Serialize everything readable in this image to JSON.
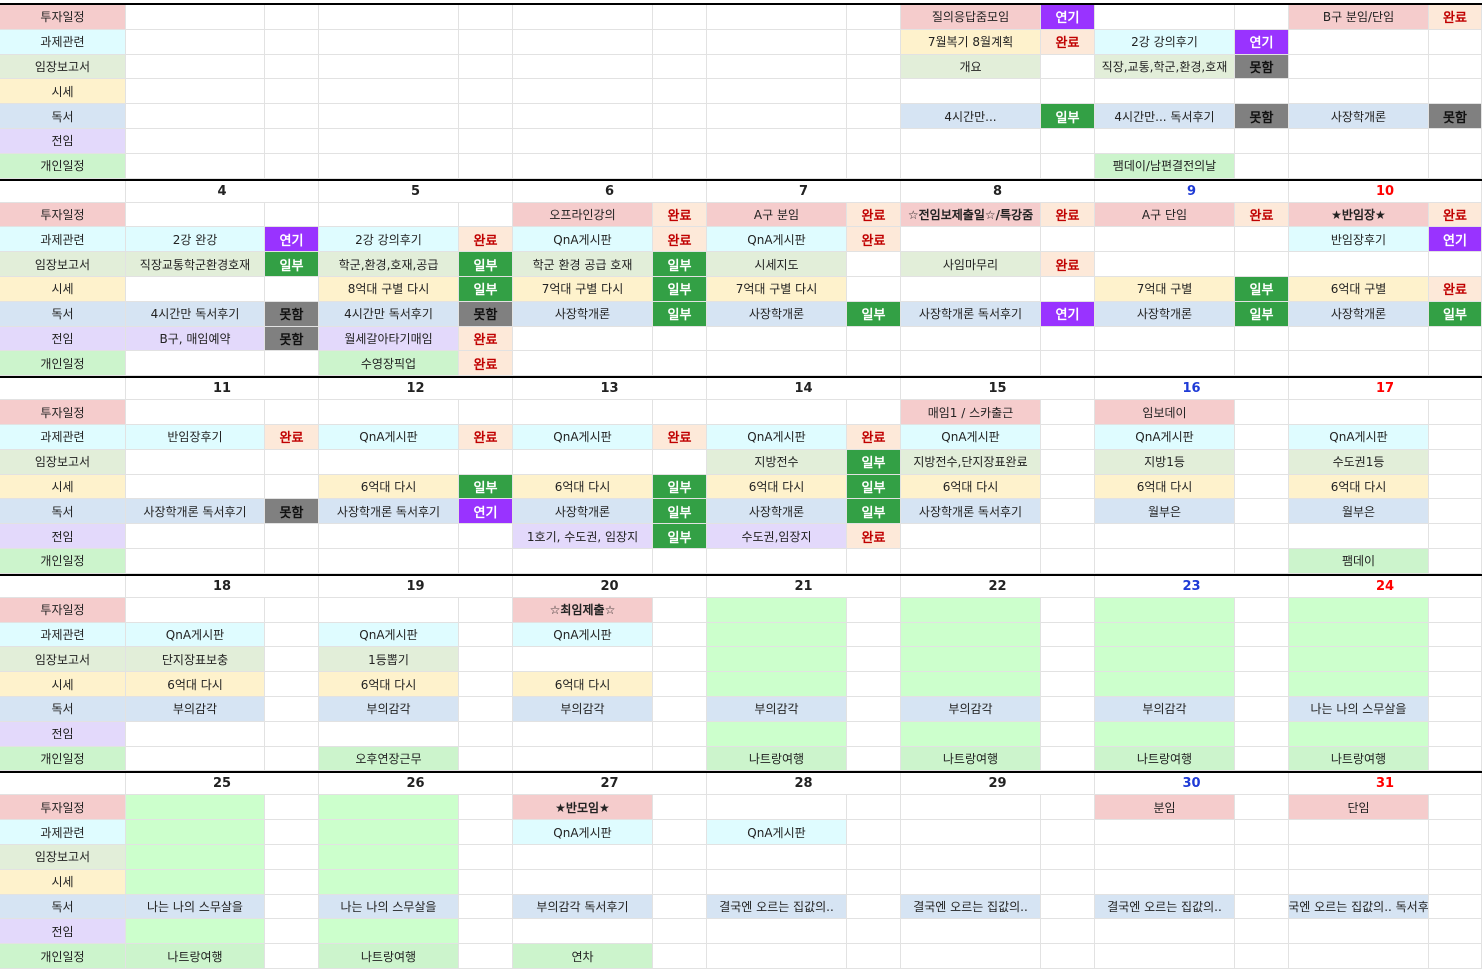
{
  "colors": {
    "label_bg": [
      "#f5cccc",
      "#dffcff",
      "#e2eed9",
      "#fef2cc",
      "#d6e4f3",
      "#e3d9fb",
      "#ccf4cc"
    ],
    "done": "#fde9d9",
    "done_text": "#c00000",
    "postpone": "#9933ff",
    "partial": "#33a045",
    "fail": "#808080",
    "pink": "#f5cccc",
    "mint": "#dffcff",
    "sage": "#e2eed9",
    "cream": "#fef2cc",
    "sky": "#d6e4f3",
    "lavender": "#e3d9fb",
    "green": "#ccf4cc",
    "bright": "#ccffcc",
    "blue_date": "#1f3bd6",
    "red_date": "#ff0000"
  },
  "labels": [
    "투자일정",
    "과제관련",
    "임장보고서",
    "시세",
    "독서",
    "전임",
    "개인일정"
  ],
  "weeks": [
    {
      "dates": [],
      "cells": [
        [
          [
            9,
            "질의응답줌모임",
            "pink"
          ],
          [
            10,
            "연기",
            "postpone"
          ],
          [
            13,
            "B구 분임/단임",
            "pink"
          ],
          [
            14,
            "완료",
            "done"
          ]
        ],
        [
          [
            9,
            "7월복기 8월계획",
            "cream"
          ],
          [
            10,
            "완료",
            "done"
          ],
          [
            11,
            "2강 강의후기",
            "mint"
          ],
          [
            12,
            "연기",
            "postpone"
          ]
        ],
        [
          [
            9,
            "개요",
            "sage"
          ],
          [
            11,
            "직장,교통,학군,환경,호재",
            "sage"
          ],
          [
            12,
            "못함",
            "fail"
          ]
        ],
        [],
        [
          [
            9,
            "4시간만...",
            "sky"
          ],
          [
            10,
            "일부",
            "partial"
          ],
          [
            11,
            "4시간만... 독서후기",
            "sky"
          ],
          [
            12,
            "못함",
            "fail"
          ],
          [
            13,
            "사장학개론",
            "sky"
          ],
          [
            14,
            "못함",
            "fail"
          ]
        ],
        [],
        [
          [
            11,
            "팸데이/남편결전의날",
            "green"
          ]
        ]
      ]
    },
    {
      "dates": [
        "4",
        "5",
        "6",
        "7",
        "8",
        "9",
        "10"
      ],
      "cells": [
        [
          [
            5,
            "오프라인강의",
            "pink"
          ],
          [
            6,
            "완료",
            "done"
          ],
          [
            7,
            "A구 분임",
            "pink"
          ],
          [
            8,
            "완료",
            "done"
          ],
          [
            9,
            "☆전임보제출일☆/특강줌",
            "pink"
          ],
          [
            10,
            "완료",
            "done"
          ],
          [
            11,
            "A구 단임",
            "pink"
          ],
          [
            12,
            "완료",
            "done"
          ],
          [
            13,
            "★반임장★",
            "pink"
          ],
          [
            14,
            "완료",
            "done"
          ]
        ],
        [
          [
            1,
            "2강 완강",
            "mint"
          ],
          [
            2,
            "연기",
            "postpone"
          ],
          [
            3,
            "2강 강의후기",
            "mint"
          ],
          [
            4,
            "완료",
            "done"
          ],
          [
            5,
            "QnA게시판",
            "mint"
          ],
          [
            6,
            "완료",
            "done"
          ],
          [
            7,
            "QnA게시판",
            "mint"
          ],
          [
            8,
            "완료",
            "done"
          ],
          [
            13,
            "반임장후기",
            "mint"
          ],
          [
            14,
            "연기",
            "postpone"
          ]
        ],
        [
          [
            1,
            "직장교통학군환경호재",
            "sage"
          ],
          [
            2,
            "일부",
            "partial"
          ],
          [
            3,
            "학군,환경,호재,공급",
            "sage"
          ],
          [
            4,
            "일부",
            "partial"
          ],
          [
            5,
            "학군 환경 공급 호재",
            "sage"
          ],
          [
            6,
            "일부",
            "partial"
          ],
          [
            7,
            "시세지도",
            "sage"
          ],
          [
            9,
            "사임마무리",
            "sage"
          ],
          [
            10,
            "완료",
            "done"
          ]
        ],
        [
          [
            3,
            "8억대 구별 다시",
            "cream"
          ],
          [
            4,
            "일부",
            "partial"
          ],
          [
            5,
            "7억대 구별 다시",
            "cream"
          ],
          [
            6,
            "일부",
            "partial"
          ],
          [
            7,
            "7억대 구별 다시",
            "cream"
          ],
          [
            11,
            "7억대 구별",
            "cream"
          ],
          [
            12,
            "일부",
            "partial"
          ],
          [
            13,
            "6억대 구별",
            "cream"
          ],
          [
            14,
            "완료",
            "done"
          ]
        ],
        [
          [
            1,
            "4시간만 독서후기",
            "sky"
          ],
          [
            2,
            "못함",
            "fail"
          ],
          [
            3,
            "4시간만 독서후기",
            "sky"
          ],
          [
            4,
            "못함",
            "fail"
          ],
          [
            5,
            "사장학개론",
            "sky"
          ],
          [
            6,
            "일부",
            "partial"
          ],
          [
            7,
            "사장학개론",
            "sky"
          ],
          [
            8,
            "일부",
            "partial"
          ],
          [
            9,
            "사장학개론 독서후기",
            "sky"
          ],
          [
            10,
            "연기",
            "postpone"
          ],
          [
            11,
            "사장학개론",
            "sky"
          ],
          [
            12,
            "일부",
            "partial"
          ],
          [
            13,
            "사장학개론",
            "sky"
          ],
          [
            14,
            "일부",
            "partial"
          ]
        ],
        [
          [
            1,
            "B구, 매임예약",
            "lavender"
          ],
          [
            2,
            "못함",
            "fail"
          ],
          [
            3,
            "월세갈아타기매임",
            "lavender"
          ],
          [
            4,
            "완료",
            "done"
          ]
        ],
        [
          [
            3,
            "수영장픽업",
            "green"
          ],
          [
            4,
            "완료",
            "done"
          ]
        ]
      ]
    },
    {
      "dates": [
        "11",
        "12",
        "13",
        "14",
        "15",
        "16",
        "17"
      ],
      "cells": [
        [
          [
            9,
            "매임1 / 스카출근",
            "pink"
          ],
          [
            11,
            "임보데이",
            "pink"
          ]
        ],
        [
          [
            1,
            "반임장후기",
            "mint"
          ],
          [
            2,
            "완료",
            "done"
          ],
          [
            3,
            "QnA게시판",
            "mint"
          ],
          [
            4,
            "완료",
            "done"
          ],
          [
            5,
            "QnA게시판",
            "mint"
          ],
          [
            6,
            "완료",
            "done"
          ],
          [
            7,
            "QnA게시판",
            "mint"
          ],
          [
            8,
            "완료",
            "done"
          ],
          [
            9,
            "QnA게시판",
            "mint"
          ],
          [
            11,
            "QnA게시판",
            "mint"
          ],
          [
            13,
            "QnA게시판",
            "mint"
          ]
        ],
        [
          [
            7,
            "지방전수",
            "sage"
          ],
          [
            8,
            "일부",
            "partial"
          ],
          [
            9,
            "지방전수,단지장표완료",
            "sage"
          ],
          [
            11,
            "지방1등",
            "sage"
          ],
          [
            13,
            "수도권1등",
            "sage"
          ]
        ],
        [
          [
            3,
            "6억대 다시",
            "cream"
          ],
          [
            4,
            "일부",
            "partial"
          ],
          [
            5,
            "6억대 다시",
            "cream"
          ],
          [
            6,
            "일부",
            "partial"
          ],
          [
            7,
            "6억대 다시",
            "cream"
          ],
          [
            8,
            "일부",
            "partial"
          ],
          [
            9,
            "6억대 다시",
            "cream"
          ],
          [
            11,
            "6억대 다시",
            "cream"
          ],
          [
            13,
            "6억대 다시",
            "cream"
          ]
        ],
        [
          [
            1,
            "사장학개론 독서후기",
            "sky"
          ],
          [
            2,
            "못함",
            "fail"
          ],
          [
            3,
            "사장학개론 독서후기",
            "sky"
          ],
          [
            4,
            "연기",
            "postpone"
          ],
          [
            5,
            "사장학개론",
            "sky"
          ],
          [
            6,
            "일부",
            "partial"
          ],
          [
            7,
            "사장학개론",
            "sky"
          ],
          [
            8,
            "일부",
            "partial"
          ],
          [
            9,
            "사장학개론 독서후기",
            "sky"
          ],
          [
            11,
            "월부은",
            "sky"
          ],
          [
            13,
            "월부은",
            "sky"
          ]
        ],
        [
          [
            5,
            "1호기, 수도권, 임장지",
            "lavender"
          ],
          [
            6,
            "일부",
            "partial"
          ],
          [
            7,
            "수도권,임장지",
            "lavender"
          ],
          [
            8,
            "완료",
            "done"
          ]
        ],
        [
          [
            13,
            "팸데이",
            "green"
          ]
        ]
      ]
    },
    {
      "dates": [
        "18",
        "19",
        "20",
        "21",
        "22",
        "23",
        "24"
      ],
      "cells": [
        [
          [
            5,
            "☆최임제출☆",
            "pink"
          ]
        ],
        [
          [
            1,
            "QnA게시판",
            "mint"
          ],
          [
            3,
            "QnA게시판",
            "mint"
          ],
          [
            5,
            "QnA게시판",
            "mint"
          ]
        ],
        [
          [
            1,
            "단지장표보충",
            "sage"
          ],
          [
            3,
            "1등뽑기",
            "sage"
          ]
        ],
        [
          [
            1,
            "6억대 다시",
            "cream"
          ],
          [
            3,
            "6억대 다시",
            "cream"
          ],
          [
            5,
            "6억대 다시",
            "cream"
          ]
        ],
        [
          [
            1,
            "부의감각",
            "sky"
          ],
          [
            3,
            "부의감각",
            "sky"
          ],
          [
            5,
            "부의감각",
            "sky"
          ],
          [
            7,
            "부의감각",
            "sky"
          ],
          [
            9,
            "부의감각",
            "sky"
          ],
          [
            11,
            "부의감각",
            "sky"
          ],
          [
            13,
            "나는 나의 스무살을",
            "sky"
          ]
        ],
        [],
        [
          [
            3,
            "오후연장근무",
            "green"
          ],
          [
            7,
            "나트랑여행",
            "green"
          ],
          [
            9,
            "나트랑여행",
            "green"
          ],
          [
            11,
            "나트랑여행",
            "green"
          ],
          [
            13,
            "나트랑여행",
            "green"
          ]
        ]
      ],
      "vacation": [
        7,
        9,
        11,
        13
      ]
    },
    {
      "dates": [
        "25",
        "26",
        "27",
        "28",
        "29",
        "30",
        "31"
      ],
      "cells": [
        [
          [
            5,
            "★반모임★",
            "pink"
          ],
          [
            11,
            "분임",
            "pink"
          ],
          [
            13,
            "단임",
            "pink"
          ]
        ],
        [
          [
            5,
            "QnA게시판",
            "mint"
          ],
          [
            7,
            "QnA게시판",
            "mint"
          ]
        ],
        [],
        [],
        [
          [
            1,
            "나는 나의 스무살을",
            "sky"
          ],
          [
            3,
            "나는 나의 스무살을",
            "sky"
          ],
          [
            5,
            "부의감각 독서후기",
            "sky"
          ],
          [
            7,
            "결국엔 오르는 집값의..",
            "sky"
          ],
          [
            9,
            "결국엔 오르는 집값의..",
            "sky"
          ],
          [
            11,
            "결국엔 오르는 집값의..",
            "sky"
          ],
          [
            13,
            "결국엔 오르는 집값의.. 독서후기",
            "sky"
          ]
        ],
        [],
        [
          [
            1,
            "나트랑여행",
            "green"
          ],
          [
            3,
            "나트랑여행",
            "green"
          ],
          [
            5,
            "연차",
            "green"
          ]
        ]
      ],
      "vacation": [
        1,
        3
      ]
    }
  ]
}
